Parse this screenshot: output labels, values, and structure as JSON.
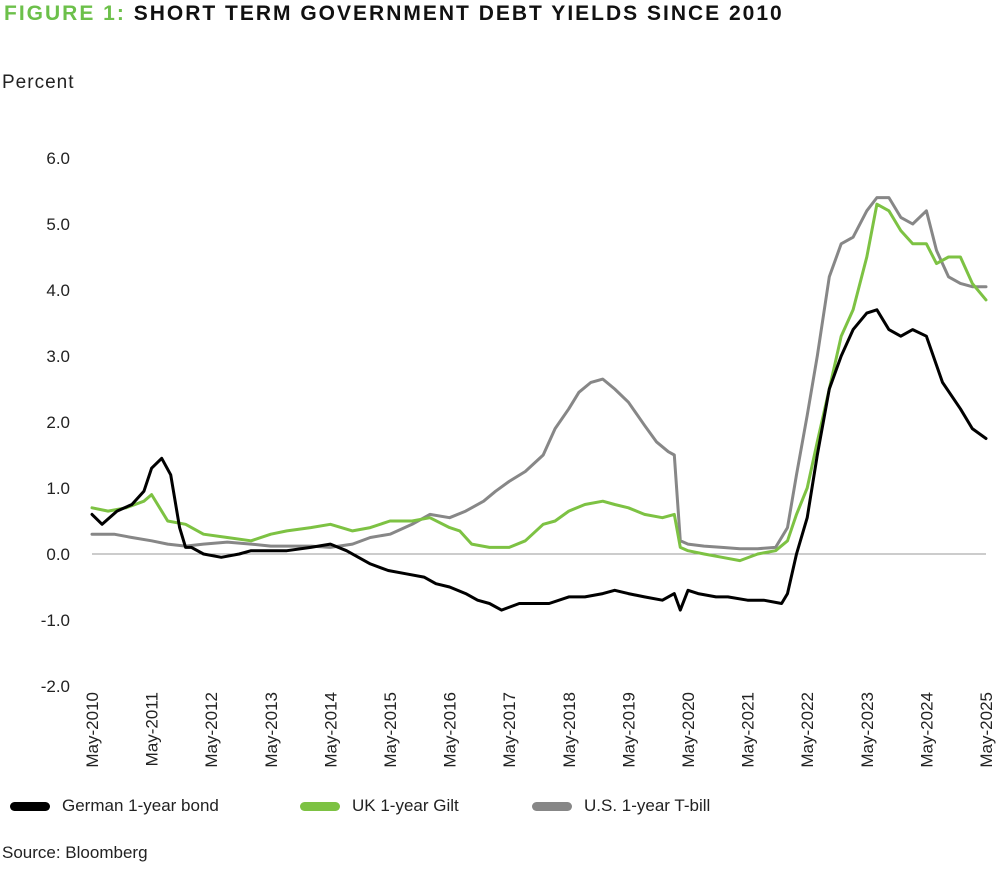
{
  "title": {
    "prefix": "FIGURE 1:",
    "text": "SHORT TERM GOVERNMENT DEBT YIELDS SINCE 2010"
  },
  "source": "Source: Bloomberg",
  "chart_data": {
    "type": "line",
    "ylabel": "Percent",
    "ylim": [
      -2.0,
      6.0
    ],
    "yticks": [
      "-2.0",
      "-1.0",
      "0.0",
      "1.0",
      "2.0",
      "3.0",
      "4.0",
      "5.0",
      "6.0"
    ],
    "xlim": [
      2010.33,
      2025.33
    ],
    "xticks": [
      "May-2010",
      "May-2011",
      "May-2012",
      "May-2013",
      "May-2014",
      "May-2015",
      "May-2016",
      "May-2017",
      "May-2018",
      "May-2019",
      "May-2020",
      "May-2021",
      "May-2022",
      "May-2023",
      "May-2024",
      "May-2025"
    ],
    "grid": false,
    "zero_line": true,
    "legend_position": "bottom",
    "series": [
      {
        "name": "German 1-year bond",
        "color": "#000000",
        "x": [
          2010.33,
          2010.5,
          2010.75,
          2011.0,
          2011.2,
          2011.33,
          2011.5,
          2011.65,
          2011.8,
          2011.9,
          2012.0,
          2012.2,
          2012.5,
          2012.8,
          2013.0,
          2013.33,
          2013.6,
          2014.0,
          2014.33,
          2014.6,
          2014.8,
          2015.0,
          2015.3,
          2015.6,
          2015.9,
          2016.1,
          2016.33,
          2016.6,
          2016.8,
          2017.0,
          2017.2,
          2017.5,
          2017.8,
          2018.0,
          2018.33,
          2018.6,
          2018.9,
          2019.1,
          2019.33,
          2019.6,
          2019.9,
          2020.1,
          2020.2,
          2020.33,
          2020.5,
          2020.8,
          2021.0,
          2021.33,
          2021.6,
          2021.9,
          2022.0,
          2022.15,
          2022.33,
          2022.5,
          2022.7,
          2022.9,
          2023.1,
          2023.33,
          2023.5,
          2023.7,
          2023.9,
          2024.1,
          2024.33,
          2024.6,
          2024.9,
          2025.1,
          2025.33
        ],
        "values": [
          0.6,
          0.45,
          0.65,
          0.75,
          0.95,
          1.3,
          1.45,
          1.2,
          0.4,
          0.1,
          0.1,
          0.0,
          -0.05,
          0.0,
          0.05,
          0.05,
          0.05,
          0.1,
          0.15,
          0.05,
          -0.05,
          -0.15,
          -0.25,
          -0.3,
          -0.35,
          -0.45,
          -0.5,
          -0.6,
          -0.7,
          -0.75,
          -0.85,
          -0.75,
          -0.75,
          -0.75,
          -0.65,
          -0.65,
          -0.6,
          -0.55,
          -0.6,
          -0.65,
          -0.7,
          -0.6,
          -0.85,
          -0.55,
          -0.6,
          -0.65,
          -0.65,
          -0.7,
          -0.7,
          -0.75,
          -0.6,
          0.0,
          0.55,
          1.5,
          2.5,
          3.0,
          3.4,
          3.65,
          3.7,
          3.4,
          3.3,
          3.4,
          3.3,
          2.6,
          2.2,
          1.9,
          1.75
        ]
      },
      {
        "name": "UK 1-year Gilt",
        "color": "#7dc243",
        "x": [
          2010.33,
          2010.6,
          2010.9,
          2011.2,
          2011.33,
          2011.6,
          2011.9,
          2012.2,
          2012.6,
          2013.0,
          2013.33,
          2013.6,
          2014.0,
          2014.33,
          2014.7,
          2015.0,
          2015.33,
          2015.7,
          2016.0,
          2016.33,
          2016.5,
          2016.7,
          2017.0,
          2017.33,
          2017.6,
          2017.9,
          2018.1,
          2018.33,
          2018.6,
          2018.9,
          2019.1,
          2019.33,
          2019.6,
          2019.9,
          2020.1,
          2020.2,
          2020.33,
          2020.6,
          2020.9,
          2021.2,
          2021.5,
          2021.8,
          2022.0,
          2022.15,
          2022.33,
          2022.5,
          2022.7,
          2022.9,
          2023.1,
          2023.33,
          2023.5,
          2023.7,
          2023.9,
          2024.1,
          2024.33,
          2024.5,
          2024.7,
          2024.9,
          2025.1,
          2025.33
        ],
        "values": [
          0.7,
          0.65,
          0.7,
          0.8,
          0.9,
          0.5,
          0.45,
          0.3,
          0.25,
          0.2,
          0.3,
          0.35,
          0.4,
          0.45,
          0.35,
          0.4,
          0.5,
          0.5,
          0.55,
          0.4,
          0.35,
          0.15,
          0.1,
          0.1,
          0.2,
          0.45,
          0.5,
          0.65,
          0.75,
          0.8,
          0.75,
          0.7,
          0.6,
          0.55,
          0.6,
          0.1,
          0.05,
          0.0,
          -0.05,
          -0.1,
          0.0,
          0.05,
          0.2,
          0.6,
          1.0,
          1.7,
          2.5,
          3.3,
          3.7,
          4.5,
          5.3,
          5.2,
          4.9,
          4.7,
          4.7,
          4.4,
          4.5,
          4.5,
          4.1,
          3.85
        ]
      },
      {
        "name": "U.S. 1-year T-bill",
        "color": "#878787",
        "x": [
          2010.33,
          2010.7,
          2011.0,
          2011.33,
          2011.6,
          2011.9,
          2012.2,
          2012.6,
          2013.0,
          2013.33,
          2013.7,
          2014.0,
          2014.33,
          2014.7,
          2015.0,
          2015.33,
          2015.7,
          2016.0,
          2016.33,
          2016.6,
          2016.9,
          2017.1,
          2017.33,
          2017.6,
          2017.9,
          2018.1,
          2018.33,
          2018.5,
          2018.7,
          2018.9,
          2019.1,
          2019.33,
          2019.6,
          2019.8,
          2020.0,
          2020.1,
          2020.2,
          2020.33,
          2020.6,
          2020.9,
          2021.2,
          2021.5,
          2021.8,
          2022.0,
          2022.15,
          2022.33,
          2022.5,
          2022.7,
          2022.9,
          2023.1,
          2023.33,
          2023.5,
          2023.7,
          2023.9,
          2024.1,
          2024.33,
          2024.5,
          2024.7,
          2024.9,
          2025.1,
          2025.33
        ],
        "values": [
          0.3,
          0.3,
          0.25,
          0.2,
          0.15,
          0.12,
          0.15,
          0.18,
          0.15,
          0.12,
          0.12,
          0.12,
          0.1,
          0.15,
          0.25,
          0.3,
          0.45,
          0.6,
          0.55,
          0.65,
          0.8,
          0.95,
          1.1,
          1.25,
          1.5,
          1.9,
          2.2,
          2.45,
          2.6,
          2.65,
          2.5,
          2.3,
          1.95,
          1.7,
          1.55,
          1.5,
          0.2,
          0.15,
          0.12,
          0.1,
          0.08,
          0.08,
          0.1,
          0.4,
          1.2,
          2.1,
          3.0,
          4.2,
          4.7,
          4.8,
          5.2,
          5.4,
          5.4,
          5.1,
          5.0,
          5.2,
          4.6,
          4.2,
          4.1,
          4.05,
          4.05
        ]
      }
    ]
  }
}
